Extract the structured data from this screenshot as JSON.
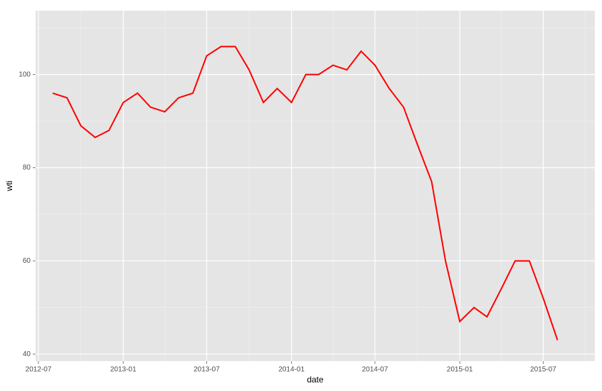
{
  "chart_data": {
    "type": "line",
    "x_label": "date",
    "y_label": "wti",
    "x": [
      "2012-08",
      "2012-09",
      "2012-10",
      "2012-11",
      "2012-12",
      "2013-01",
      "2013-02",
      "2013-03",
      "2013-04",
      "2013-05",
      "2013-06",
      "2013-07",
      "2013-08",
      "2013-09",
      "2013-10",
      "2013-11",
      "2013-12",
      "2014-01",
      "2014-02",
      "2014-03",
      "2014-04",
      "2014-05",
      "2014-06",
      "2014-07",
      "2014-08",
      "2014-09",
      "2014-10",
      "2014-11",
      "2014-12",
      "2015-01",
      "2015-02",
      "2015-03",
      "2015-04",
      "2015-05",
      "2015-06",
      "2015-07",
      "2015-08"
    ],
    "series": [
      {
        "name": "wti",
        "color": "#ff0000",
        "values": [
          96,
          95,
          89,
          86.5,
          88,
          94,
          96,
          93,
          92,
          95,
          96,
          104,
          106,
          106,
          101,
          94,
          97,
          94,
          100,
          100,
          102,
          101,
          105,
          102,
          97,
          93,
          85,
          77,
          60,
          47,
          50,
          48,
          54,
          60,
          60,
          52,
          43
        ]
      }
    ],
    "xlim": [
      "2012-07",
      "2015-10"
    ],
    "xticks": [
      "2012-07",
      "2013-01",
      "2013-07",
      "2014-01",
      "2014-07",
      "2015-01",
      "2015-07"
    ],
    "ylim": [
      38.5,
      113.7
    ],
    "yticks": [
      40,
      60,
      80,
      100
    ],
    "yminor": [
      50,
      70,
      90,
      110
    ],
    "grid": true
  }
}
